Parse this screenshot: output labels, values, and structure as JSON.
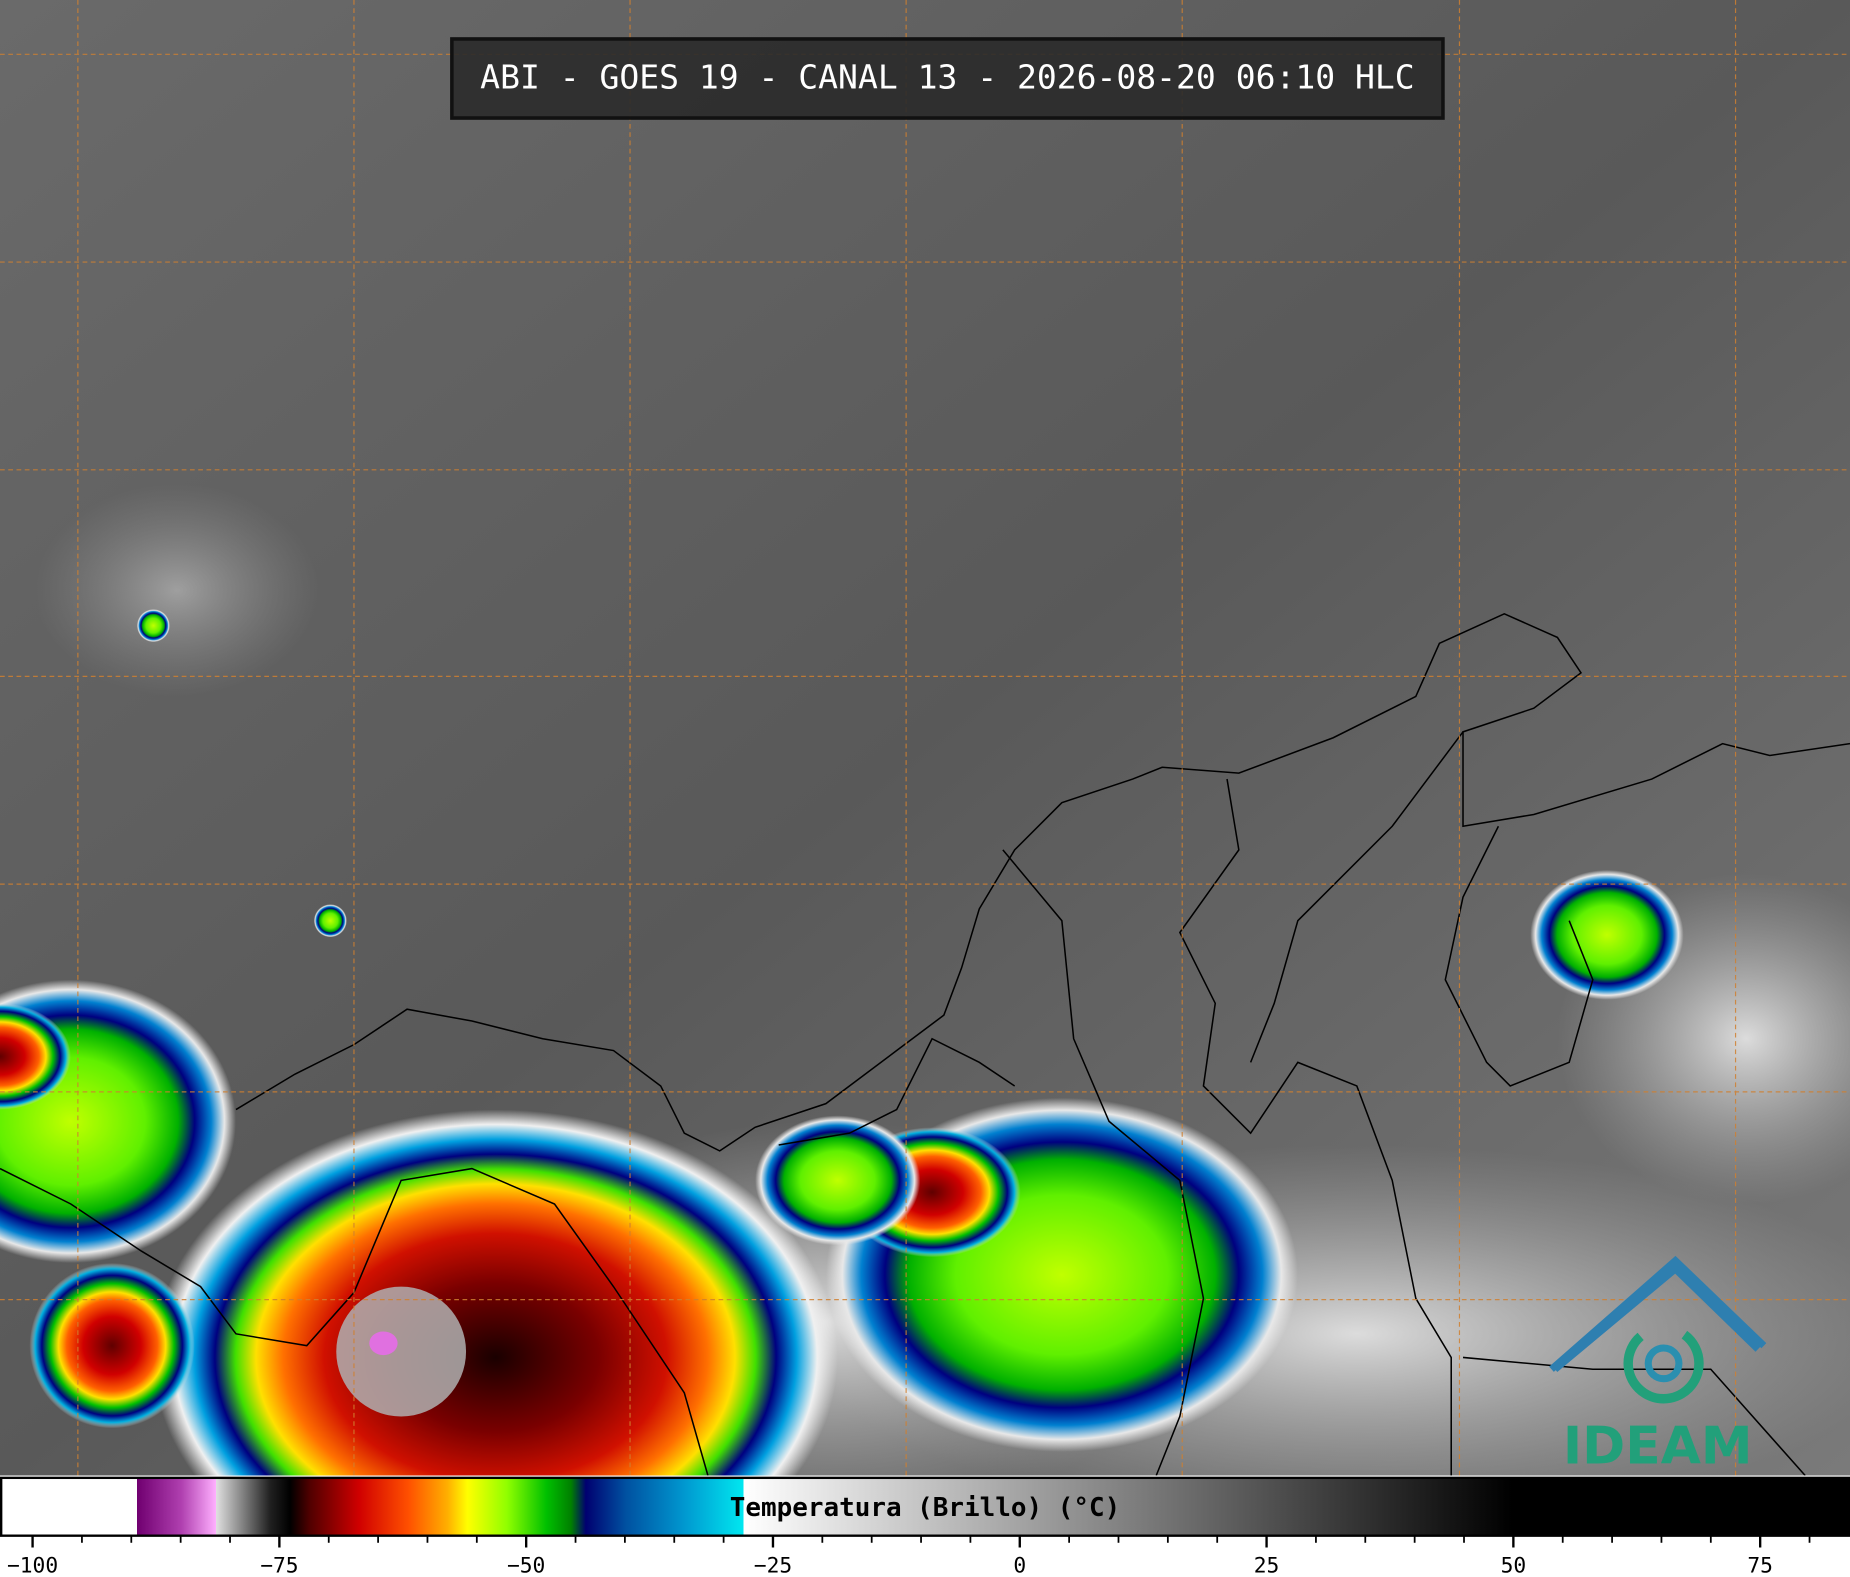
{
  "header": {
    "title": "ABI - GOES 19 - CANAL 13 - 2026-08-20 06:10 HLC"
  },
  "colorbar": {
    "label": "Temperatura (Brillo) (°C)",
    "range": [
      -103.3,
      84.1
    ],
    "ticks": [
      {
        "value": -100,
        "label": "−100"
      },
      {
        "value": -75,
        "label": "−75"
      },
      {
        "value": -50,
        "label": "−50"
      },
      {
        "value": -25,
        "label": "−25"
      },
      0,
      25,
      50,
      75
    ],
    "minor_ticks": [
      -95,
      -90,
      -85,
      -80,
      -70,
      -65,
      -60,
      -55,
      -45,
      -40,
      -35,
      -30,
      -20,
      -15,
      -10,
      -5,
      5,
      10,
      15,
      20,
      30,
      35,
      40,
      45,
      55,
      60,
      65,
      70,
      80
    ],
    "color_stops": [
      {
        "value": -103.3,
        "color": "#ffffff"
      },
      {
        "value": -89.5,
        "color": "#ffffff"
      },
      {
        "value": -89.5,
        "color": "#700070"
      },
      {
        "value": -85,
        "color": "#b040b0"
      },
      {
        "value": -81.5,
        "color": "#ffb0ff"
      },
      {
        "value": -81.5,
        "color": "#e0e0e0"
      },
      {
        "value": -76,
        "color": "#202020"
      },
      {
        "value": -74,
        "color": "#000000"
      },
      {
        "value": -72,
        "color": "#500000"
      },
      {
        "value": -67,
        "color": "#d00000"
      },
      {
        "value": -62,
        "color": "#ff5000"
      },
      {
        "value": -58,
        "color": "#ffb000"
      },
      {
        "value": -56,
        "color": "#ffff00"
      },
      {
        "value": -52,
        "color": "#90ff00"
      },
      {
        "value": -48,
        "color": "#00c000"
      },
      {
        "value": -45.5,
        "color": "#008000"
      },
      {
        "value": -44,
        "color": "#000070"
      },
      {
        "value": -40,
        "color": "#0050a0"
      },
      {
        "value": -34,
        "color": "#0098d0"
      },
      {
        "value": -28,
        "color": "#00e8f0"
      },
      {
        "value": -28,
        "color": "#ffffff"
      },
      {
        "value": 50,
        "color": "#000000"
      },
      {
        "value": 84.1,
        "color": "#000000"
      }
    ]
  },
  "logo": {
    "text": "IDEAM"
  }
}
